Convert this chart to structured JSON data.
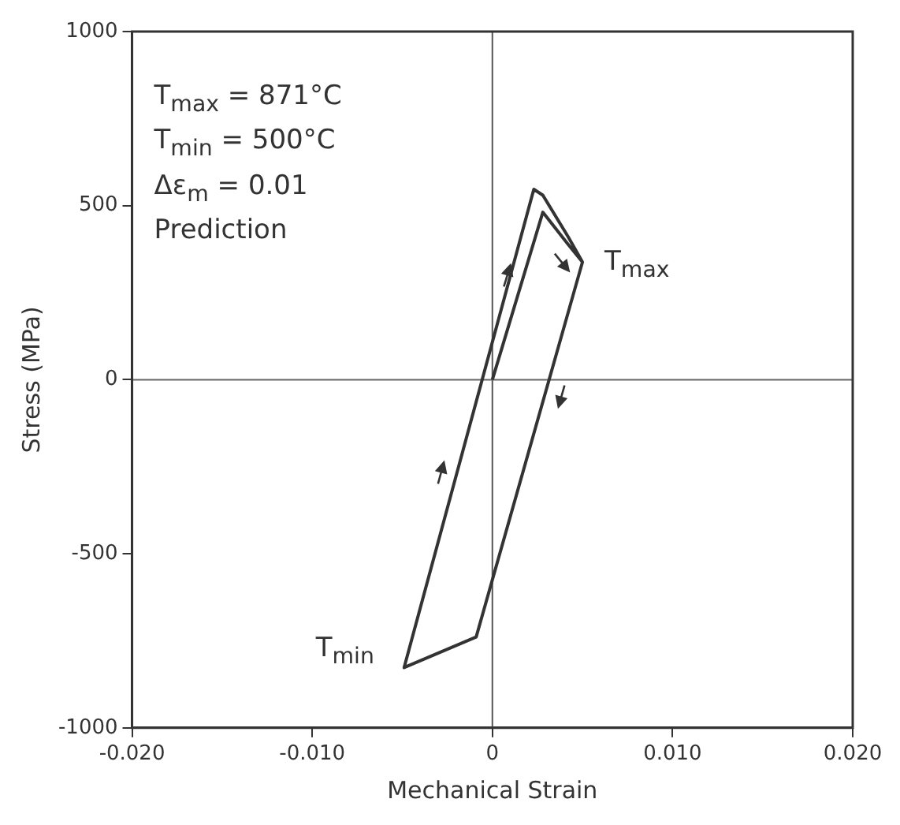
{
  "chart_data": {
    "type": "line",
    "xlabel": "Mechanical Strain",
    "ylabel": "Stress (MPa)",
    "xlim": [
      -0.02,
      0.02
    ],
    "xticks": [
      {
        "value": -0.02,
        "label": "-0.020"
      },
      {
        "value": -0.01,
        "label": "-0.010"
      },
      0,
      {
        "value": 0.01,
        "label": "0.010"
      },
      {
        "value": 0.02,
        "label": "0.020"
      }
    ],
    "ylim": [
      -1000,
      1000
    ],
    "yticks": [
      -1000,
      -500,
      0,
      500,
      1000
    ],
    "grid": false,
    "legend": false,
    "marker": "none",
    "line_style": "solid",
    "series": [
      {
        "color": "#333333",
        "x": [
          0,
          0.0028,
          0.0042,
          0.005,
          -0.0009,
          -0.0049,
          0.0023,
          0.0028,
          0.0042,
          0.005
        ],
        "values": [
          0,
          481,
          389,
          338,
          -739,
          -827,
          547,
          530,
          411,
          338
        ]
      }
    ],
    "ref_lines": [
      {
        "axis": "x",
        "value": 0,
        "color": "#555555"
      },
      {
        "axis": "y",
        "value": 0,
        "color": "#666666"
      }
    ],
    "annotations": [
      "T$_{max}$ = 871°C",
      "T$_{min}$ = 500°C",
      "Δε$_{m}$ = 0.01",
      "Prediction",
      {
        "text": "T$_{max}$",
        "x": 0.005,
        "y": 338
      },
      {
        "text": "T$_{min}$",
        "x": -0.0049,
        "y": -827
      }
    ]
  }
}
